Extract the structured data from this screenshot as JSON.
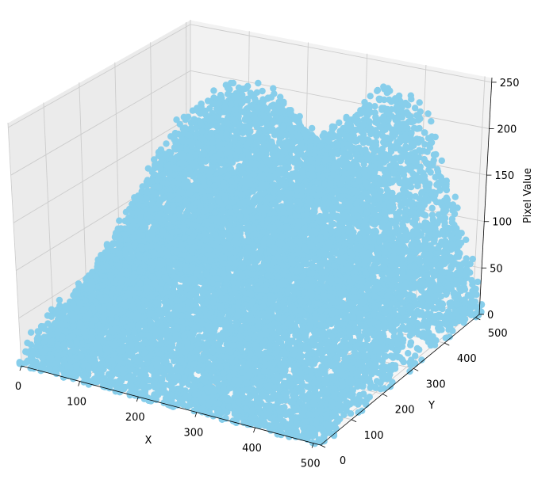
{
  "chart_data": {
    "type": "scatter",
    "projection": "3d",
    "marker_color": "#87ceeb",
    "grid": true,
    "pane_colors": {
      "left": "#ebebeb",
      "back": "#f2f2f2",
      "floor": "#f6f6f6"
    },
    "xlabel": "X",
    "ylabel": "Y",
    "zlabel": "Pixel Value",
    "xlim": [
      0,
      512
    ],
    "ylim": [
      0,
      512
    ],
    "zlim": [
      0,
      255
    ],
    "x_ticks": [
      0,
      100,
      200,
      300,
      400,
      500
    ],
    "y_ticks": [
      0,
      100,
      200,
      300,
      400,
      500
    ],
    "z_ticks": [
      0,
      50,
      100,
      150,
      200,
      250
    ],
    "surface_profile": [
      {
        "y": 0,
        "x": [
          0,
          100,
          200,
          250,
          300,
          350,
          400,
          450,
          512
        ],
        "z": [
          10,
          8,
          5,
          5,
          5,
          5,
          5,
          5,
          8
        ]
      },
      {
        "y": 100,
        "x": [
          0,
          100,
          200,
          250,
          300,
          350,
          400,
          450,
          512
        ],
        "z": [
          25,
          60,
          90,
          90,
          40,
          80,
          95,
          50,
          40
        ]
      },
      {
        "y": 200,
        "x": [
          0,
          100,
          200,
          250,
          300,
          350,
          400,
          450,
          512
        ],
        "z": [
          35,
          140,
          200,
          150,
          70,
          160,
          180,
          110,
          70
        ]
      },
      {
        "y": 300,
        "x": [
          0,
          100,
          200,
          250,
          300,
          350,
          400,
          450,
          512
        ],
        "z": [
          40,
          190,
          250,
          200,
          120,
          215,
          225,
          160,
          90
        ]
      },
      {
        "y": 400,
        "x": [
          0,
          100,
          200,
          250,
          300,
          350,
          400,
          450,
          512
        ],
        "z": [
          30,
          150,
          220,
          200,
          150,
          190,
          255,
          170,
          60
        ]
      },
      {
        "y": 512,
        "x": [
          0,
          100,
          200,
          250,
          300,
          350,
          400,
          450,
          512
        ],
        "z": [
          15,
          80,
          140,
          120,
          100,
          110,
          200,
          120,
          20
        ]
      }
    ]
  }
}
